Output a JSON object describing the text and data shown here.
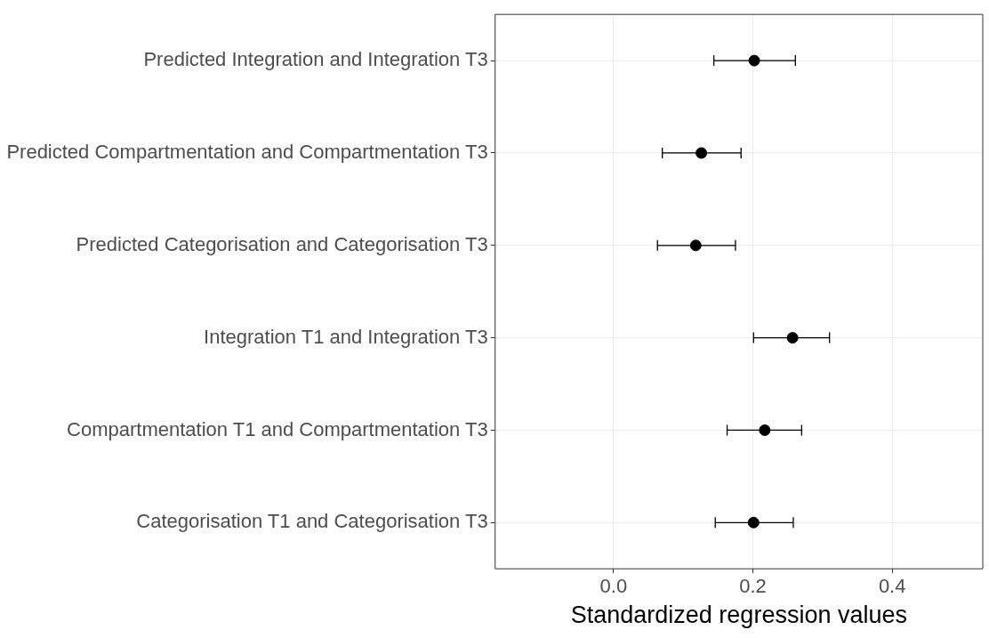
{
  "chart_data": {
    "type": "scatter",
    "orientation": "horizontal",
    "xlabel": "Standardized regression values",
    "categories": [
      "Predicted Integration and Integration T3",
      "Predicted Compartmentation and Compartmentation T3",
      "Predicted Categorisation and Categorisation T3",
      "Integration T1 and Integration T3",
      "Compartmentation T1 and Compartmentation T3",
      "Categorisation T1 and Categorisation T3"
    ],
    "values": [
      0.202,
      0.126,
      0.118,
      0.257,
      0.217,
      0.201
    ],
    "errors": [
      [
        0.144,
        0.261
      ],
      [
        0.07,
        0.183
      ],
      [
        0.063,
        0.175
      ],
      [
        0.201,
        0.31
      ],
      [
        0.163,
        0.27
      ],
      [
        0.146,
        0.258
      ]
    ],
    "color": "#000000",
    "marker": "circle",
    "xlim": [
      -0.17,
      0.53
    ],
    "xticks": [
      {
        "value": 0,
        "label": "0.0"
      },
      {
        "value": 0.2,
        "label": "0.2"
      },
      {
        "value": 0.4,
        "label": "0.4"
      }
    ],
    "grid": true,
    "legend": false
  }
}
